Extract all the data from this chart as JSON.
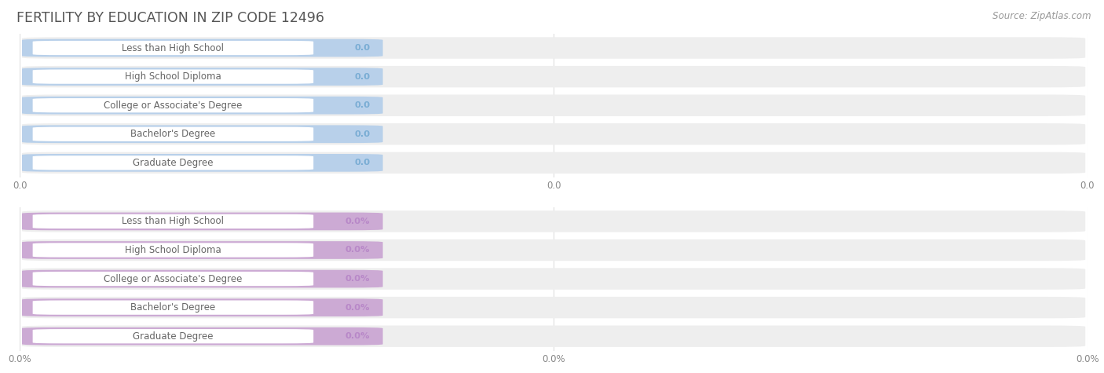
{
  "title": "FERTILITY BY EDUCATION IN ZIP CODE 12496",
  "source": "Source: ZipAtlas.com",
  "categories": [
    "Less than High School",
    "High School Diploma",
    "College or Associate's Degree",
    "Bachelor's Degree",
    "Graduate Degree"
  ],
  "top_values": [
    0.0,
    0.0,
    0.0,
    0.0,
    0.0
  ],
  "bottom_values": [
    0.0,
    0.0,
    0.0,
    0.0,
    0.0
  ],
  "top_bar_color": "#b8d0ea",
  "bottom_bar_color": "#ccaad4",
  "bar_bg_color": "#eeeeee",
  "white_pill_color": "#ffffff",
  "top_value_color": "#7aadd4",
  "bottom_value_color": "#b888c8",
  "top_xtick_labels": [
    "0.0",
    "0.0",
    "0.0"
  ],
  "bottom_xtick_labels": [
    "0.0%",
    "0.0%",
    "0.0%"
  ],
  "title_color": "#555555",
  "source_color": "#999999",
  "label_text_color": "#666666",
  "fig_bg_color": "#ffffff"
}
